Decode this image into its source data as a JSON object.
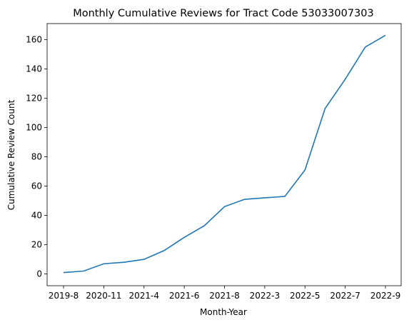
{
  "chart_data": {
    "type": "line",
    "title": "Monthly Cumulative Reviews for Tract Code 53033007303",
    "xlabel": "Month-Year",
    "ylabel": "Cumulative Review Count",
    "ylim": [
      -8,
      171
    ],
    "yticks": [
      0,
      20,
      40,
      60,
      80,
      100,
      120,
      140,
      160
    ],
    "xtick_labels": [
      "2019-8",
      "2020-11",
      "2021-4",
      "2021-6",
      "2021-8",
      "2022-3",
      "2022-5",
      "2022-7",
      "2022-9"
    ],
    "xtick_index": [
      0,
      2,
      4,
      6,
      8,
      10,
      12,
      14,
      16
    ],
    "grid": false,
    "color": "#1f77b4",
    "series": [
      {
        "values": [
          1,
          2,
          7,
          8,
          10,
          16,
          25,
          33,
          46,
          51,
          52,
          53,
          71,
          113,
          133,
          155,
          163
        ]
      }
    ]
  }
}
